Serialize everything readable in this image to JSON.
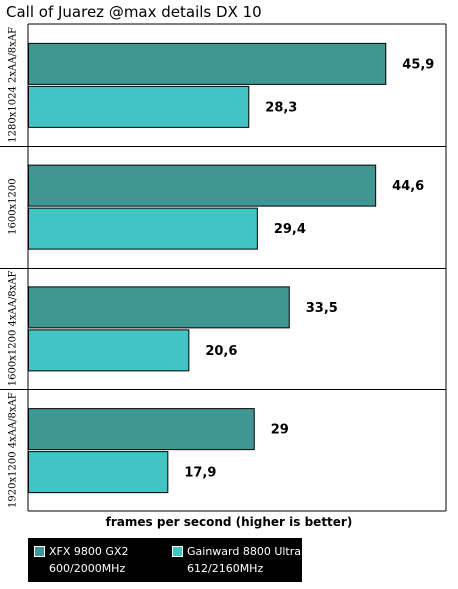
{
  "chart_data": {
    "type": "bar",
    "orientation": "horizontal",
    "title": "Call of Juarez @max details  DX 10",
    "xlabel": "frames per second (higher is better)",
    "categories": [
      "1280x1024 2xAA/8xAF",
      "1600x1200",
      "1600x1200 4xAA/8xAF",
      "1920x1200 4xAA/8xAF"
    ],
    "series": [
      {
        "name": "XFX 9800 GX2",
        "sublabel": "600/2000MHz",
        "color": "#3f9692",
        "values": [
          45.9,
          44.6,
          33.5,
          29
        ],
        "value_labels": [
          "45,9",
          "44,6",
          "33,5",
          "29"
        ]
      },
      {
        "name": "Gainward 8800 Ultra",
        "sublabel": "612/2160MHz",
        "color": "#43c4c4",
        "values": [
          28.3,
          29.4,
          20.6,
          17.9
        ],
        "value_labels": [
          "28,3",
          "29,4",
          "20,6",
          "17,9"
        ]
      }
    ],
    "xlim": [
      0,
      50
    ],
    "legend_position": "bottom-left",
    "grid": false
  }
}
